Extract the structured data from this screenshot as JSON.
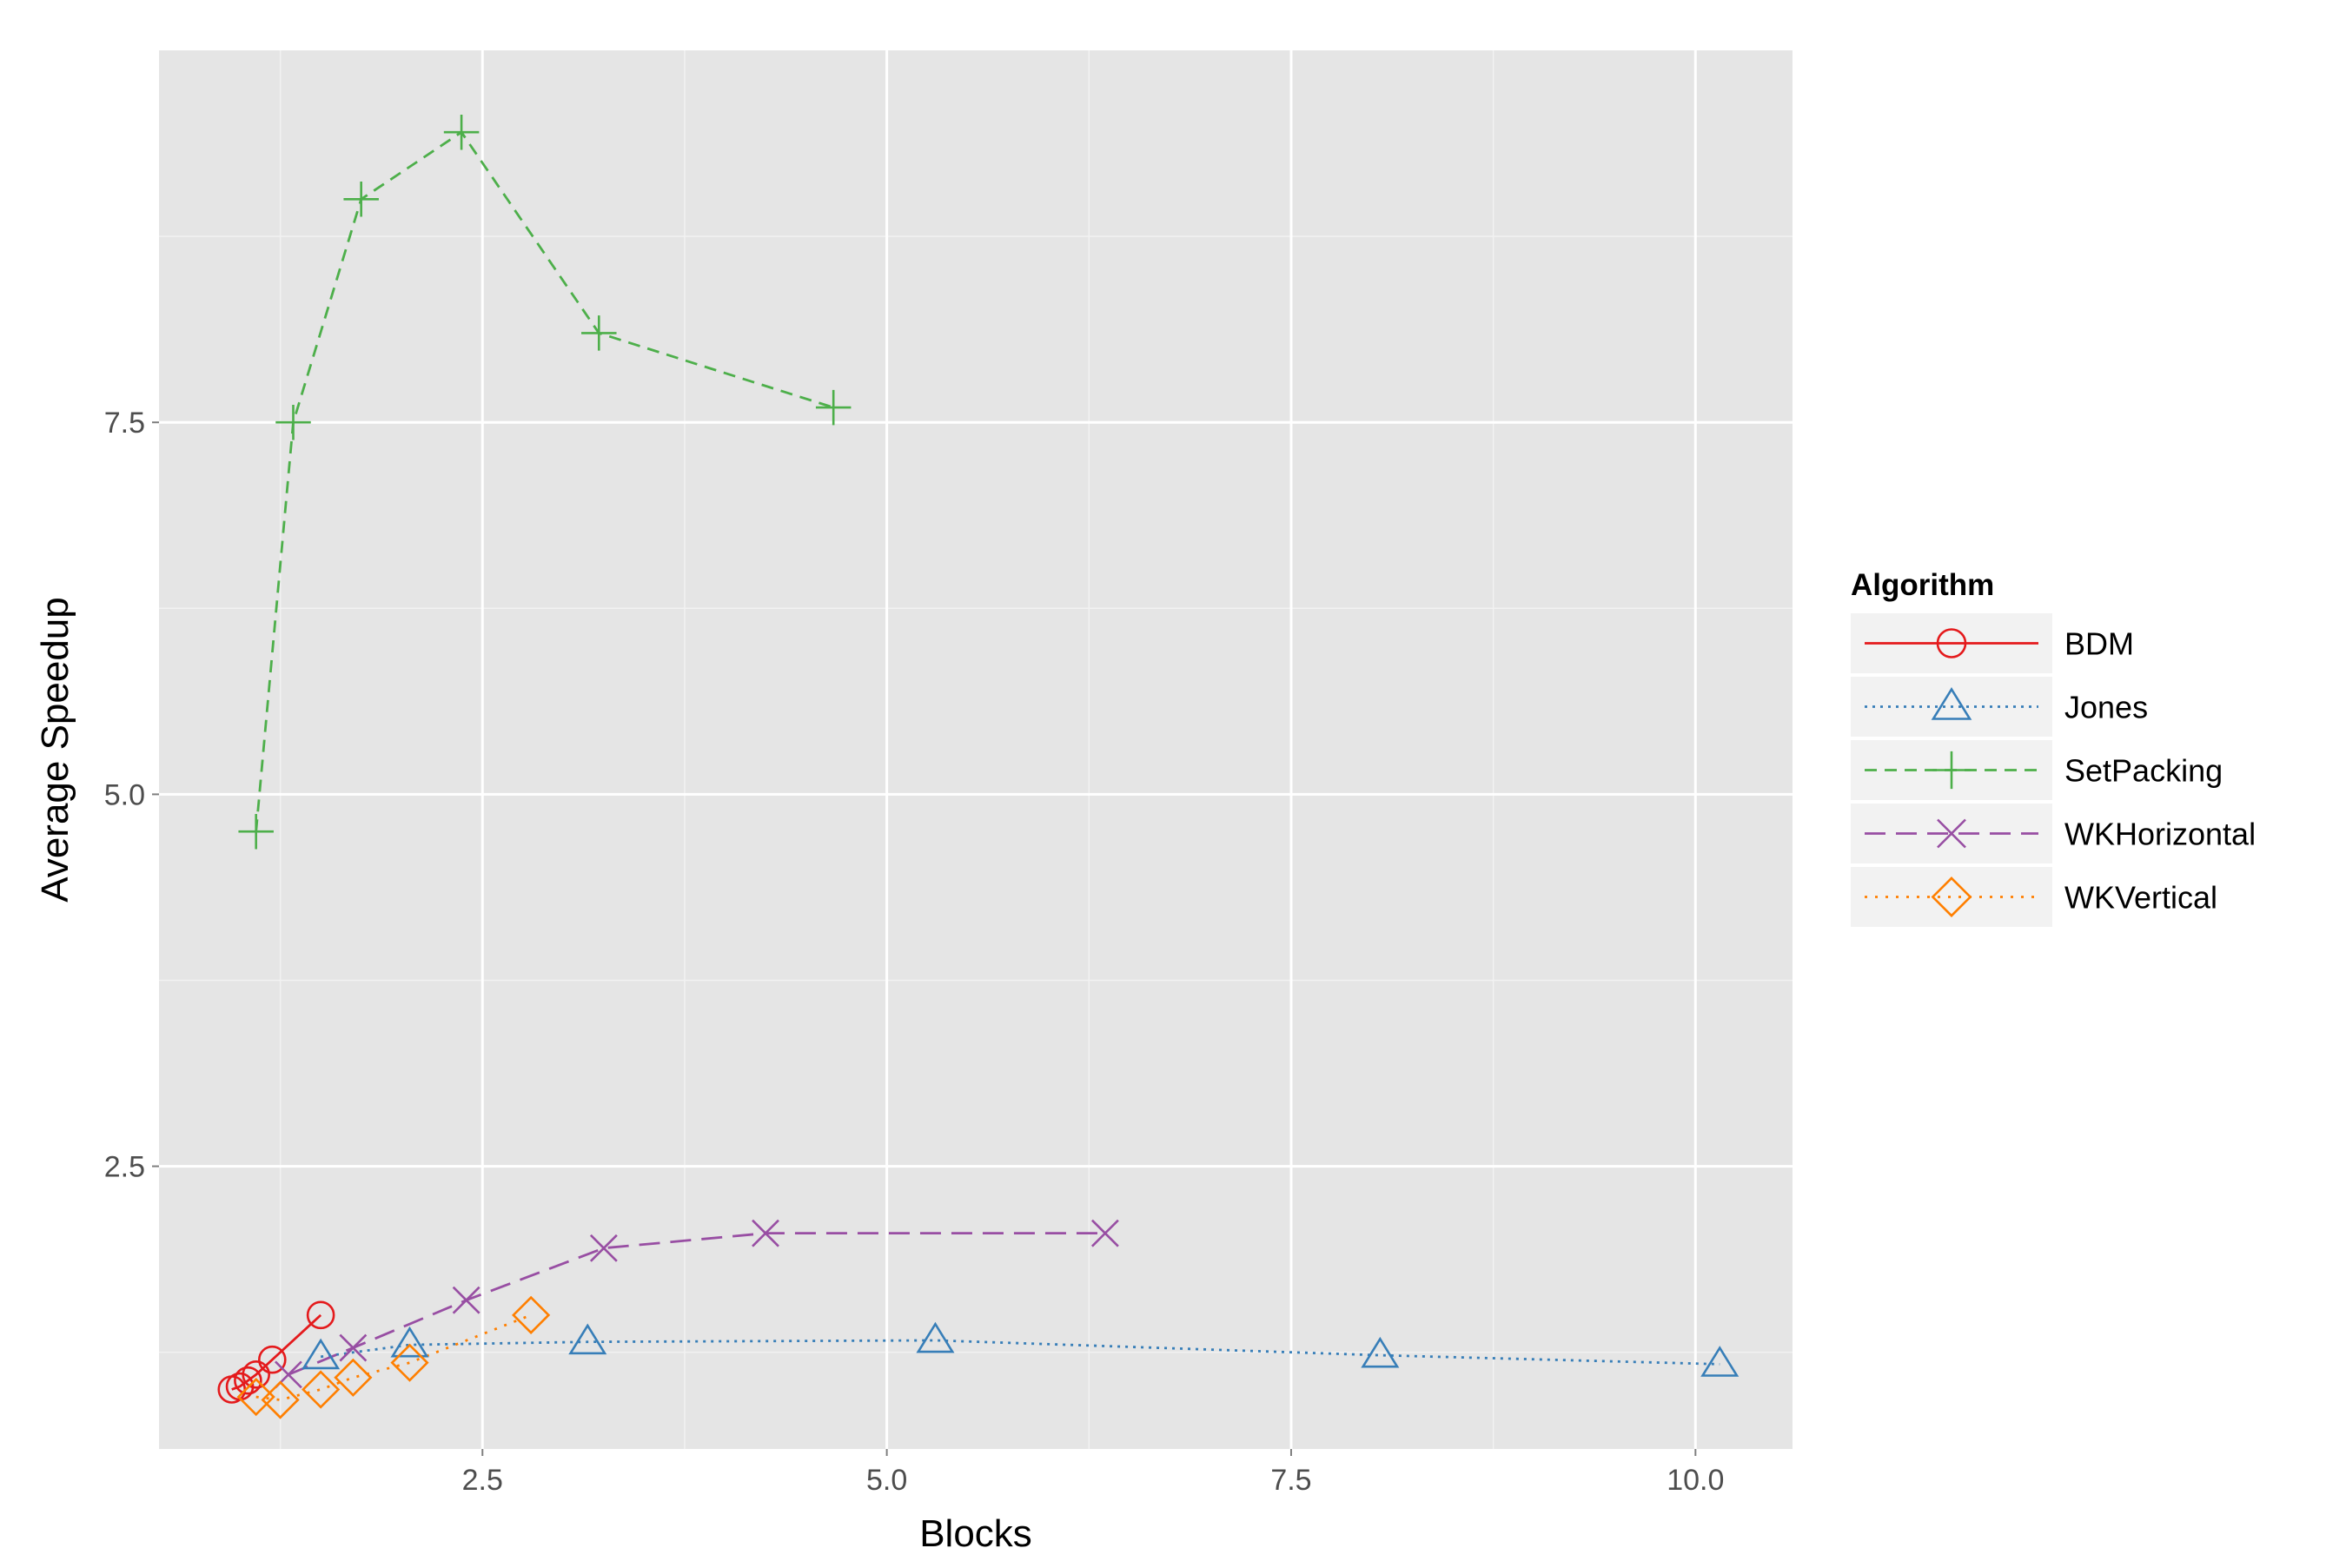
{
  "chart_data": {
    "type": "line",
    "title": "",
    "xlabel": "Blocks",
    "ylabel": "Average Speedup",
    "xlim": [
      0.5,
      10.6
    ],
    "ylim": [
      0.6,
      10.0
    ],
    "x_ticks": [
      2.5,
      5.0,
      7.5,
      10.0
    ],
    "x_tick_labels": [
      "2.5",
      "5.0",
      "7.5",
      "10.0"
    ],
    "y_ticks": [
      2.5,
      5.0,
      7.5
    ],
    "y_tick_labels": [
      "2.5",
      "5.0",
      "7.5"
    ],
    "x_minor_ticks": [
      1.25,
      3.75,
      6.25,
      8.75
    ],
    "y_minor_ticks": [
      1.25,
      3.75,
      6.25,
      8.75
    ],
    "grid": true,
    "legend_title": "Algorithm",
    "legend_position": "right",
    "series": [
      {
        "name": "BDM",
        "color": "#e41a1c",
        "line_style": "solid",
        "marker": "circle",
        "x": [
          0.95,
          1.0,
          1.05,
          1.1,
          1.2,
          1.5
        ],
        "y": [
          1.0,
          1.02,
          1.06,
          1.1,
          1.2,
          1.5
        ]
      },
      {
        "name": "Jones",
        "color": "#377eb8",
        "line_style": "dotted",
        "marker": "triangle",
        "x": [
          1.5,
          2.05,
          3.15,
          5.3,
          8.05,
          10.15
        ],
        "y": [
          1.22,
          1.3,
          1.32,
          1.33,
          1.23,
          1.17
        ]
      },
      {
        "name": "SetPacking",
        "color": "#4daf4a",
        "line_style": "dashed",
        "marker": "plus",
        "x": [
          1.1,
          1.33,
          1.75,
          2.37,
          3.22,
          4.67
        ],
        "y": [
          4.75,
          7.5,
          9.0,
          9.45,
          8.1,
          7.6
        ]
      },
      {
        "name": "WKHorizontal",
        "color": "#984ea3",
        "line_style": "longdash",
        "marker": "x",
        "x": [
          1.3,
          1.7,
          2.4,
          3.25,
          4.25,
          6.35
        ],
        "y": [
          1.1,
          1.28,
          1.6,
          1.95,
          2.05,
          2.05
        ]
      },
      {
        "name": "WKVertical",
        "color": "#ff7f00",
        "line_style": "dotdash",
        "marker": "diamond",
        "x": [
          1.1,
          1.25,
          1.5,
          1.7,
          2.05,
          2.8
        ],
        "y": [
          0.95,
          0.93,
          1.0,
          1.08,
          1.18,
          1.5
        ]
      }
    ]
  }
}
